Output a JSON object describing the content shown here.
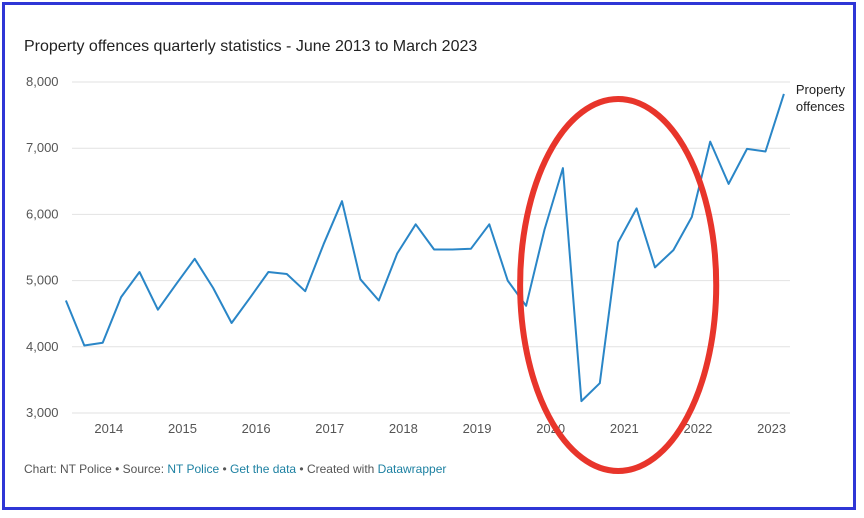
{
  "title": "Property offences quarterly statistics - June 2013 to March 2023",
  "colors": {
    "line": "#2a86c7",
    "grid": "#e2e2e2",
    "annotation": "#e8352b",
    "border": "#2f36d6",
    "link": "#1d81a2"
  },
  "footer": {
    "chart_prefix": "Chart: NT Police",
    "sep1": " • Source: ",
    "source": "NT Police",
    "sep2": " • ",
    "get_data": "Get the data",
    "sep3": " • Created with ",
    "tool": "Datawrapper"
  },
  "chart_data": {
    "type": "line",
    "title": "Property offences quarterly statistics - June 2013 to March 2023",
    "xlabel": "",
    "ylabel": "",
    "ylim": [
      3000,
      8000
    ],
    "xlim": [
      2013.5,
      2023.25
    ],
    "y_ticks": [
      3000,
      4000,
      5000,
      6000,
      7000,
      8000
    ],
    "y_tick_labels": [
      "3,000",
      "4,000",
      "5,000",
      "6,000",
      "7,000",
      "8,000"
    ],
    "x_ticks": [
      2014,
      2015,
      2016,
      2017,
      2018,
      2019,
      2020,
      2021,
      2022,
      2023
    ],
    "x_tick_labels": [
      "2014",
      "2015",
      "2016",
      "2017",
      "2018",
      "2019",
      "2020",
      "2021",
      "2022",
      "2023"
    ],
    "grid": true,
    "legend_placement": "end-of-line",
    "series": [
      {
        "name": "Property offences",
        "label_lines": [
          "Property",
          "offences"
        ],
        "x": [
          "Jun 2013",
          "Sep 2013",
          "Dec 2013",
          "Mar 2014",
          "Jun 2014",
          "Sep 2014",
          "Dec 2014",
          "Mar 2015",
          "Jun 2015",
          "Sep 2015",
          "Dec 2015",
          "Mar 2016",
          "Jun 2016",
          "Sep 2016",
          "Dec 2016",
          "Mar 2017",
          "Jun 2017",
          "Sep 2017",
          "Dec 2017",
          "Mar 2018",
          "Jun 2018",
          "Sep 2018",
          "Dec 2018",
          "Mar 2019",
          "Jun 2019",
          "Sep 2019",
          "Dec 2019",
          "Mar 2020",
          "Jun 2020",
          "Sep 2020",
          "Dec 2020",
          "Mar 2021",
          "Jun 2021",
          "Sep 2021",
          "Dec 2021",
          "Mar 2022",
          "Jun 2022",
          "Sep 2022",
          "Dec 2022",
          "Mar 2023"
        ],
        "values": [
          4700,
          4020,
          4060,
          4750,
          5130,
          4560,
          4950,
          5330,
          4890,
          4360,
          4740,
          5130,
          5100,
          4840,
          5550,
          6200,
          5020,
          4700,
          5410,
          5850,
          5470,
          5470,
          5480,
          5850,
          5000,
          4620,
          5770,
          6700,
          3180,
          3450,
          5580,
          6090,
          5200,
          5460,
          5960,
          7100,
          6460,
          6990,
          6950,
          7820
        ]
      }
    ],
    "annotations": [
      {
        "type": "ellipse",
        "label": "",
        "x_range": [
          "Sep 2019",
          "Mar 2022"
        ]
      }
    ]
  }
}
